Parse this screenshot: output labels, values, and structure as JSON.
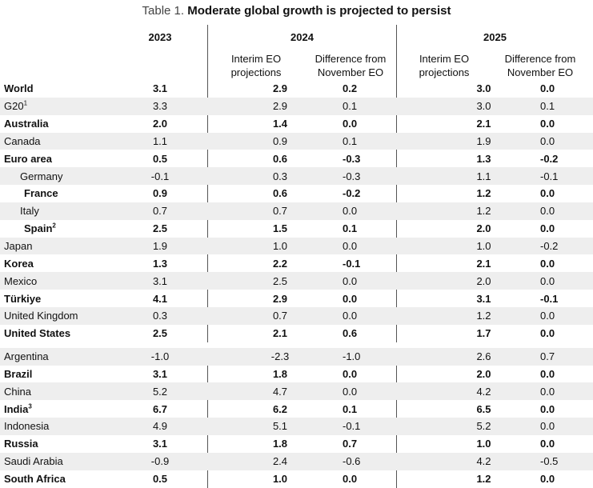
{
  "title": {
    "prefix": "Table 1.",
    "text": "Moderate global growth is projected to persist"
  },
  "headers": {
    "y2023": "2023",
    "y2024": "2024",
    "y2025": "2025",
    "interim_line1": "Interim EO",
    "interim_line2": "projections",
    "diff_line1": "Difference from",
    "diff_line2": "November EO"
  },
  "rows": [
    {
      "name": "World",
      "sup": "",
      "bold": true,
      "indent": 0,
      "v": [
        "3.1",
        "2.9",
        "0.2",
        "3.0",
        "0.0"
      ]
    },
    {
      "name": "G20",
      "sup": "1",
      "bold": false,
      "indent": 0,
      "v": [
        "3.3",
        "2.9",
        "0.1",
        "3.0",
        "0.1"
      ]
    },
    {
      "name": "Australia",
      "sup": "",
      "bold": true,
      "indent": 0,
      "v": [
        "2.0",
        "1.4",
        "0.0",
        "2.1",
        "0.0"
      ]
    },
    {
      "name": "Canada",
      "sup": "",
      "bold": false,
      "indent": 0,
      "v": [
        "1.1",
        "0.9",
        "0.1",
        "1.9",
        "0.0"
      ]
    },
    {
      "name": "Euro area",
      "sup": "",
      "bold": true,
      "indent": 0,
      "v": [
        "0.5",
        "0.6",
        "-0.3",
        "1.3",
        "-0.2"
      ]
    },
    {
      "name": "Germany",
      "sup": "",
      "bold": false,
      "indent": 1,
      "v": [
        "-0.1",
        "0.3",
        "-0.3",
        "1.1",
        "-0.1"
      ]
    },
    {
      "name": "France",
      "sup": "",
      "bold": true,
      "indent": 1,
      "v": [
        "0.9",
        "0.6",
        "-0.2",
        "1.2",
        "0.0"
      ]
    },
    {
      "name": "Italy",
      "sup": "",
      "bold": false,
      "indent": 1,
      "v": [
        "0.7",
        "0.7",
        "0.0",
        "1.2",
        "0.0"
      ]
    },
    {
      "name": "Spain",
      "sup": "2",
      "bold": true,
      "indent": 1,
      "v": [
        "2.5",
        "1.5",
        "0.1",
        "2.0",
        "0.0"
      ]
    },
    {
      "name": "Japan",
      "sup": "",
      "bold": false,
      "indent": 0,
      "v": [
        "1.9",
        "1.0",
        "0.0",
        "1.0",
        "-0.2"
      ]
    },
    {
      "name": "Korea",
      "sup": "",
      "bold": true,
      "indent": 0,
      "v": [
        "1.3",
        "2.2",
        "-0.1",
        "2.1",
        "0.0"
      ]
    },
    {
      "name": "Mexico",
      "sup": "",
      "bold": false,
      "indent": 0,
      "v": [
        "3.1",
        "2.5",
        "0.0",
        "2.0",
        "0.0"
      ]
    },
    {
      "name": "Türkiye",
      "sup": "",
      "bold": true,
      "indent": 0,
      "v": [
        "4.1",
        "2.9",
        "0.0",
        "3.1",
        "-0.1"
      ]
    },
    {
      "name": "United Kingdom",
      "sup": "",
      "bold": false,
      "indent": 0,
      "v": [
        "0.3",
        "0.7",
        "0.0",
        "1.2",
        "0.0"
      ]
    },
    {
      "name": "United States",
      "sup": "",
      "bold": true,
      "indent": 0,
      "v": [
        "2.5",
        "2.1",
        "0.6",
        "1.7",
        "0.0"
      ]
    },
    {
      "name": "Argentina",
      "sup": "",
      "bold": false,
      "indent": 0,
      "v": [
        "-1.0",
        "-2.3",
        "-1.0",
        "2.6",
        "0.7"
      ]
    },
    {
      "name": "Brazil",
      "sup": "",
      "bold": true,
      "indent": 0,
      "v": [
        "3.1",
        "1.8",
        "0.0",
        "2.0",
        "0.0"
      ]
    },
    {
      "name": "China",
      "sup": "",
      "bold": false,
      "indent": 0,
      "v": [
        "5.2",
        "4.7",
        "0.0",
        "4.2",
        "0.0"
      ]
    },
    {
      "name": "India",
      "sup": "3",
      "bold": true,
      "indent": 0,
      "v": [
        "6.7",
        "6.2",
        "0.1",
        "6.5",
        "0.0"
      ]
    },
    {
      "name": "Indonesia",
      "sup": "",
      "bold": false,
      "indent": 0,
      "v": [
        "4.9",
        "5.1",
        "-0.1",
        "5.2",
        "0.0"
      ]
    },
    {
      "name": "Russia",
      "sup": "",
      "bold": true,
      "indent": 0,
      "v": [
        "3.1",
        "1.8",
        "0.7",
        "1.0",
        "0.0"
      ]
    },
    {
      "name": "Saudi Arabia",
      "sup": "",
      "bold": false,
      "indent": 0,
      "v": [
        "-0.9",
        "2.4",
        "-0.6",
        "4.2",
        "-0.5"
      ]
    },
    {
      "name": "South Africa",
      "sup": "",
      "bold": true,
      "indent": 0,
      "v": [
        "0.5",
        "1.0",
        "0.0",
        "1.2",
        "0.0"
      ]
    }
  ]
}
